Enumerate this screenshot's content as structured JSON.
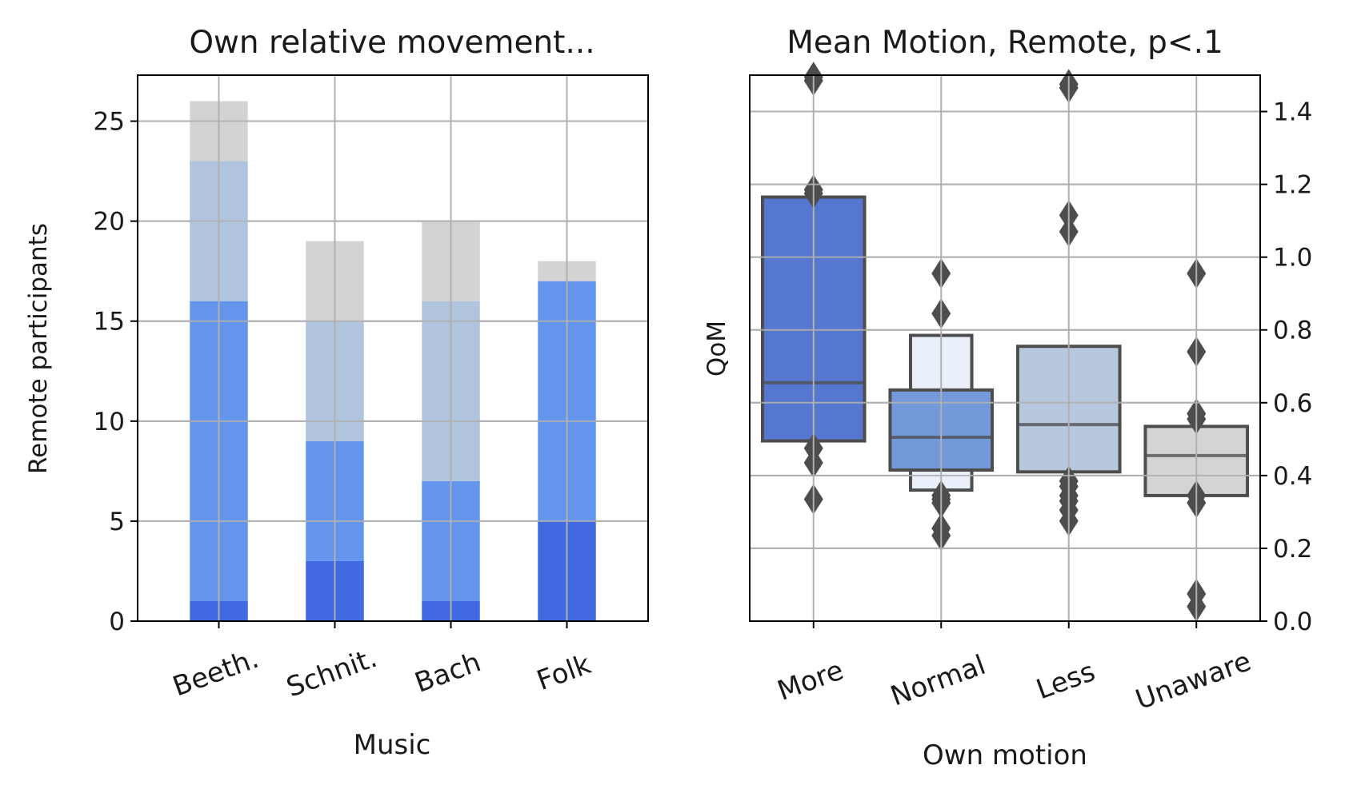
{
  "chart_data": [
    {
      "type": "bar",
      "stacked": true,
      "title": "Own relative movement...",
      "xlabel": "Music",
      "ylabel": "Remote participants",
      "ylim": [
        0,
        27.3
      ],
      "yticks": [
        0,
        5,
        10,
        15,
        20,
        25
      ],
      "grid": true,
      "categories": [
        "Beeth.",
        "Schnit.",
        "Bach",
        "Folk"
      ],
      "series": [
        {
          "color": "#4169e1",
          "values": [
            1,
            3,
            1,
            5
          ]
        },
        {
          "color": "#6495ed",
          "values": [
            15,
            6,
            6,
            12
          ]
        },
        {
          "color": "#b0c4de",
          "values": [
            7,
            6,
            9,
            0
          ]
        },
        {
          "color": "#d3d3d3",
          "values": [
            3,
            4,
            4,
            1
          ]
        }
      ]
    },
    {
      "type": "boxen",
      "title": "Mean Motion, Remote, p<.1",
      "xlabel": "Own motion",
      "ylabel": "QoM",
      "ylim": [
        0.0,
        1.5
      ],
      "yticks": [
        "0.0",
        "0.2",
        "0.4",
        "0.6",
        "0.8",
        "1.0",
        "1.2",
        "1.4"
      ],
      "yaxis_side": "right",
      "grid": true,
      "categories": [
        "More",
        "Normal",
        "Less",
        "Unaware"
      ],
      "groups": [
        {
          "name": "More",
          "color": "#5577d0",
          "boxes": [
            [
              0.495,
              1.165
            ]
          ],
          "median": 0.655,
          "outliers": [
            0.335,
            0.435,
            0.475,
            1.175,
            1.185,
            1.485,
            1.495
          ]
        },
        {
          "name": "Normal",
          "color": "#7399db",
          "boxes": [
            [
              0.36,
              0.785
            ],
            [
              0.415,
              0.635
            ]
          ],
          "box_colors": [
            "#eaf0fa",
            "#7399db"
          ],
          "median": 0.505,
          "outliers": [
            0.235,
            0.255,
            0.325,
            0.335,
            0.345,
            0.845,
            0.955
          ]
        },
        {
          "name": "Less",
          "color": "#b7c7de",
          "boxes": [
            [
              0.41,
              0.755
            ]
          ],
          "median": 0.54,
          "outliers": [
            0.275,
            0.305,
            0.33,
            0.345,
            0.37,
            0.385,
            1.07,
            1.115,
            1.465,
            1.475
          ]
        },
        {
          "name": "Unaware",
          "color": "#d4d4d4",
          "boxes": [
            [
              0.345,
              0.535
            ]
          ],
          "median": 0.455,
          "outliers": [
            0.04,
            0.075,
            0.325,
            0.345,
            0.555,
            0.57,
            0.74,
            0.955
          ]
        }
      ]
    }
  ]
}
